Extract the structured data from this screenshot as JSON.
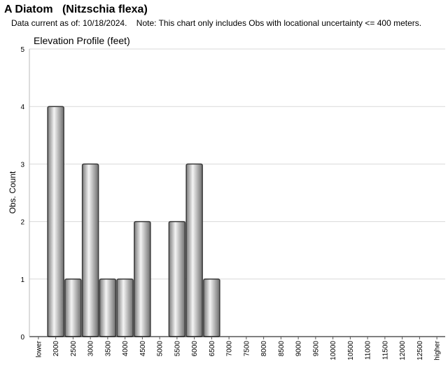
{
  "header": {
    "title": "A Diatom   (Nitzschia flexa)",
    "subtitle": "Data current as of: 10/18/2024.    Note: This chart only includes Obs with locational uncertainty <= 400 meters."
  },
  "chart_data": {
    "type": "bar",
    "title": "Elevation Profile (feet)",
    "xlabel": "",
    "ylabel": "Obs. Count",
    "ylim": [
      0,
      5
    ],
    "yticks": [
      0,
      1,
      2,
      3,
      4,
      5
    ],
    "grid": true,
    "categories": [
      "lower",
      "2000",
      "2500",
      "3000",
      "3500",
      "4000",
      "4500",
      "5000",
      "5500",
      "6000",
      "6500",
      "7000",
      "7500",
      "8000",
      "8500",
      "9000",
      "9500",
      "10000",
      "10500",
      "11000",
      "11500",
      "12000",
      "12500",
      "higher"
    ],
    "values": [
      0,
      4,
      1,
      3,
      1,
      1,
      2,
      0,
      2,
      3,
      1,
      0,
      0,
      0,
      0,
      0,
      0,
      0,
      0,
      0,
      0,
      0,
      0,
      0
    ],
    "colors": {
      "bar_dark": "#6e6e6e",
      "bar_light": "#f4f4f4",
      "bar_stroke": "#3a3a3a",
      "grid": "#d9d9d9",
      "axis": "#000000"
    }
  }
}
